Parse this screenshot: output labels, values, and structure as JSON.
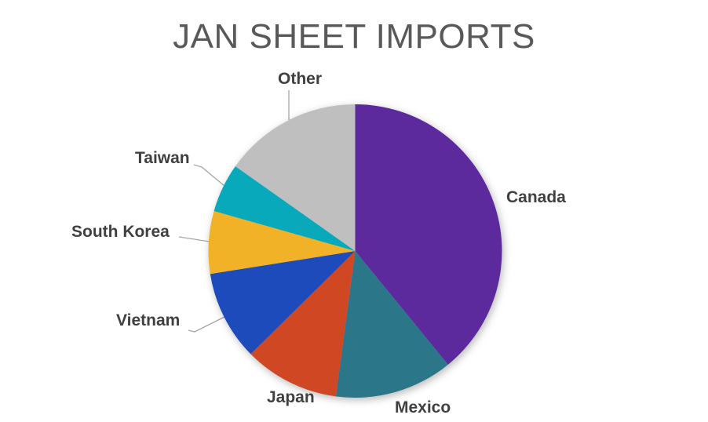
{
  "chart": {
    "title_color": "#595959",
    "label_color": "#404040",
    "leader_line_color": "#A6A6A6",
    "background": "#FFFFFF"
  },
  "chart_data": {
    "type": "pie",
    "title": "JAN SHEET IMPORTS",
    "categories": [
      "Canada",
      "Mexico",
      "Japan",
      "Vietnam",
      "South Korea",
      "Taiwan",
      "Other"
    ],
    "values": [
      39.1,
      13.0,
      10.5,
      9.9,
      6.9,
      5.4,
      15.2
    ],
    "unit": "percent",
    "colors": [
      "#5C2A9D",
      "#2C7689",
      "#D04724",
      "#1E4BBC",
      "#F2B227",
      "#08A9BA",
      "#BFBFBF"
    ],
    "start_angle_deg": 0,
    "direction": "clockwise",
    "legend": "none",
    "labels_position": "outside",
    "data_labels": "category-name-only"
  }
}
